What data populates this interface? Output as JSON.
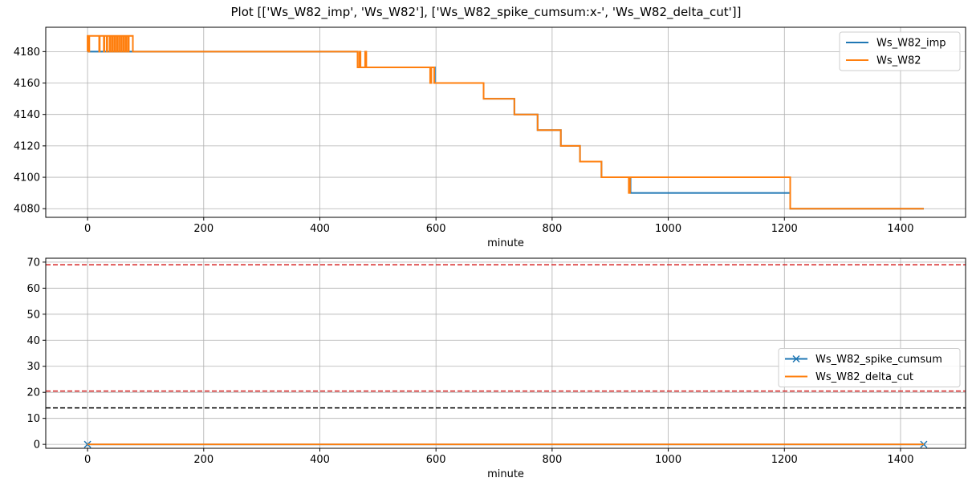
{
  "figure": {
    "title": "Plot [['Ws_W82_imp', 'Ws_W82'], ['Ws_W82_spike_cumsum:x-', 'Ws_W82_delta_cut']]"
  },
  "chart_data": [
    {
      "type": "line",
      "xlabel": "minute",
      "ylabel": "",
      "xlim": [
        -72,
        1512
      ],
      "ylim": [
        4074.5,
        4195.5
      ],
      "xticks": [
        0,
        200,
        400,
        600,
        800,
        1000,
        1200,
        1400
      ],
      "yticks": [
        4080,
        4100,
        4120,
        4140,
        4160,
        4180
      ],
      "grid": true,
      "legend_position": "upper right",
      "legend": [
        "Ws_W82_imp",
        "Ws_W82"
      ],
      "series": [
        {
          "name": "Ws_W82_imp",
          "color": "#1f77b4",
          "x": [
            0,
            465,
            465,
            598,
            598,
            682,
            682,
            735,
            735,
            775,
            775,
            815,
            815,
            848,
            848,
            885,
            885,
            935,
            935,
            1210,
            1210,
            1440
          ],
          "y": [
            4180,
            4180,
            4170,
            4170,
            4160,
            4160,
            4150,
            4150,
            4140,
            4140,
            4130,
            4130,
            4120,
            4120,
            4110,
            4110,
            4100,
            4100,
            4090,
            4090,
            4080,
            4080
          ]
        },
        {
          "name": "Ws_W82",
          "color": "#ff7f0e",
          "x": [
            0,
            0,
            2,
            2,
            3,
            3,
            20,
            20,
            21,
            21,
            28,
            28,
            29,
            29,
            33,
            33,
            34,
            34,
            38,
            38,
            39,
            39,
            42,
            42,
            43,
            43,
            46,
            46,
            47,
            47,
            50,
            50,
            51,
            51,
            54,
            54,
            55,
            55,
            58,
            58,
            59,
            59,
            62,
            62,
            63,
            63,
            66,
            66,
            67,
            67,
            70,
            70,
            71,
            71,
            78,
            78,
            465,
            465,
            468,
            468,
            470,
            470,
            472,
            472,
            478,
            478,
            480,
            480,
            590,
            590,
            592,
            592,
            597,
            597,
            598,
            598,
            682,
            682,
            735,
            735,
            775,
            775,
            815,
            815,
            848,
            848,
            885,
            885,
            932,
            932,
            934,
            934,
            1210,
            1210,
            1440
          ],
          "y": [
            4180,
            4190,
            4190,
            4180,
            4180,
            4190,
            4190,
            4180,
            4180,
            4190,
            4190,
            4180,
            4180,
            4190,
            4190,
            4180,
            4180,
            4190,
            4190,
            4180,
            4180,
            4190,
            4190,
            4180,
            4180,
            4190,
            4190,
            4180,
            4180,
            4190,
            4190,
            4180,
            4180,
            4190,
            4190,
            4180,
            4180,
            4190,
            4190,
            4180,
            4180,
            4190,
            4190,
            4180,
            4180,
            4190,
            4190,
            4180,
            4180,
            4190,
            4190,
            4180,
            4180,
            4190,
            4190,
            4180,
            4180,
            4170,
            4170,
            4180,
            4180,
            4170,
            4170,
            4170,
            4170,
            4180,
            4180,
            4170,
            4170,
            4160,
            4160,
            4170,
            4170,
            4160,
            4160,
            4160,
            4160,
            4150,
            4150,
            4140,
            4140,
            4130,
            4130,
            4120,
            4120,
            4110,
            4110,
            4100,
            4100,
            4090,
            4090,
            4100,
            4100,
            4080,
            4080
          ]
        }
      ]
    },
    {
      "type": "line",
      "xlabel": "minute",
      "ylabel": "",
      "xlim": [
        -72,
        1512
      ],
      "ylim": [
        -1.5,
        71.5
      ],
      "xticks": [
        0,
        200,
        400,
        600,
        800,
        1000,
        1200,
        1400
      ],
      "yticks": [
        0,
        10,
        20,
        30,
        40,
        50,
        60,
        70
      ],
      "grid": true,
      "legend_position": "center right",
      "legend": [
        "Ws_W82_spike_cumsum",
        "Ws_W82_delta_cut"
      ],
      "series": [
        {
          "name": "Ws_W82_spike_cumsum",
          "color": "#1f77b4",
          "marker": "x",
          "x": [
            0,
            1440
          ],
          "y": [
            0,
            0
          ]
        },
        {
          "name": "Ws_W82_delta_cut",
          "color": "#ff7f0e",
          "x": [
            0,
            1440
          ],
          "y": [
            0,
            0
          ]
        }
      ],
      "hlines": [
        {
          "y": 69,
          "color": "#d62728",
          "style": "dashed"
        },
        {
          "y": 20.5,
          "color": "#d62728",
          "style": "dashed"
        },
        {
          "y": 14,
          "color": "#000000",
          "style": "dashed"
        }
      ]
    }
  ]
}
